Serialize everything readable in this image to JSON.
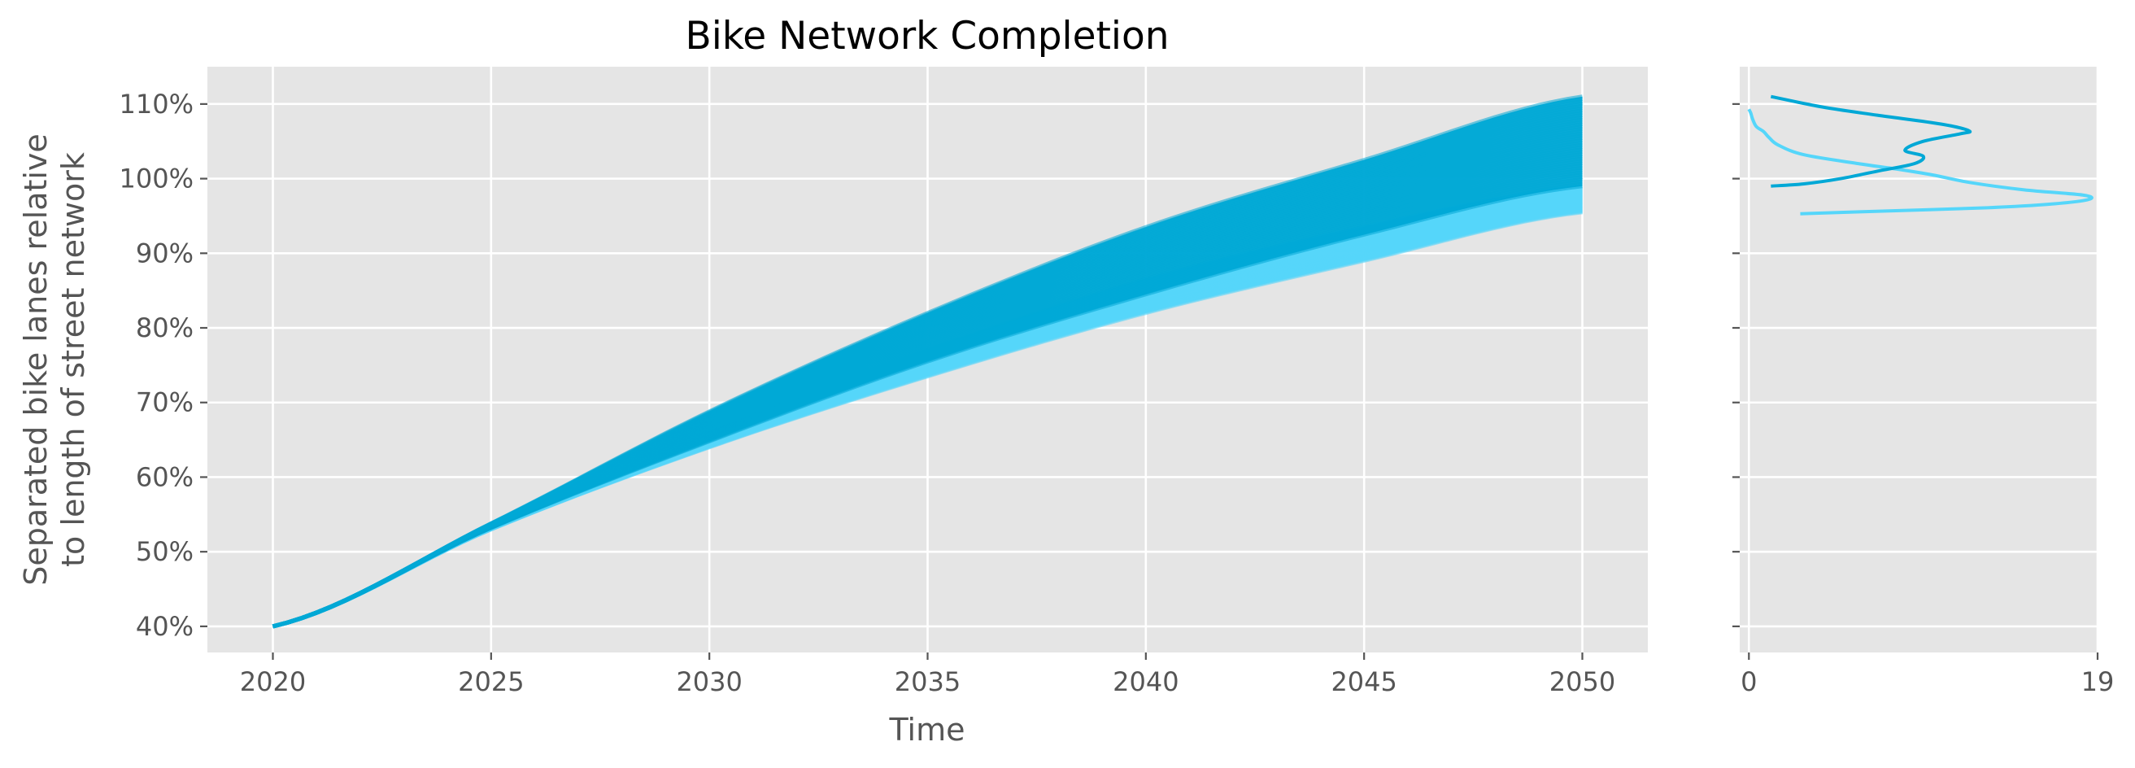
{
  "chart_data": [
    {
      "type": "line",
      "title": "Bike Network Completion",
      "xlabel": "Time",
      "ylabel_lines": [
        "Separated bike lanes relative",
        "to length of street network"
      ],
      "x_ticks": [
        2020,
        2025,
        2030,
        2035,
        2040,
        2045,
        2050
      ],
      "y_ticks": [
        40,
        50,
        60,
        70,
        80,
        90,
        100,
        110
      ],
      "y_tick_labels": [
        "40%",
        "50%",
        "60%",
        "70%",
        "80%",
        "90%",
        "100%",
        "110%"
      ],
      "xlim": [
        2018.5,
        2051.5
      ],
      "ylim": [
        36.5,
        115
      ],
      "grid": true,
      "background": "#e5e5e5",
      "description_of_series": "Two ensembles of trajectories from 2020 to 2050",
      "series": [
        {
          "color": "#00a8d6",
          "x": [
            2020,
            2025,
            2030,
            2035,
            2040,
            2045,
            2050
          ],
          "lower": [
            40,
            53.2,
            64.8,
            75.5,
            84.5,
            92.5,
            99.0
          ],
          "upper": [
            40,
            53.8,
            68.8,
            82.0,
            93.5,
            102.5,
            111.0
          ]
        },
        {
          "color": "#55d6fa",
          "x": [
            2020,
            2025,
            2030,
            2035,
            2040,
            2045,
            2050
          ],
          "lower": [
            40,
            53.0,
            64.0,
            73.5,
            82.0,
            89.0,
            95.5
          ],
          "upper": [
            40,
            53.5,
            66.0,
            77.0,
            86.5,
            93.5,
            99.0
          ]
        }
      ]
    },
    {
      "type": "line",
      "orientation": "horizontal density",
      "x_ticks": [
        0,
        19
      ],
      "x_tick_labels": [
        "0",
        "19"
      ],
      "xlim": [
        -0.5,
        19
      ],
      "ylim": [
        36.5,
        115
      ],
      "y_ticks": [
        40,
        50,
        60,
        70,
        80,
        90,
        100,
        110
      ],
      "grid": true,
      "series": [
        {
          "color": "#00a8d6",
          "points": [
            [
              1.2,
              99.0
            ],
            [
              3.0,
              99.3
            ],
            [
              5.0,
              100.0
            ],
            [
              7.0,
              101.0
            ],
            [
              9.0,
              102.0
            ],
            [
              9.5,
              103.0
            ],
            [
              8.5,
              103.8
            ],
            [
              9.5,
              105.0
            ],
            [
              11.5,
              106.0
            ],
            [
              12.0,
              106.4
            ],
            [
              10.5,
              107.3
            ],
            [
              7.0,
              108.5
            ],
            [
              4.0,
              109.6
            ],
            [
              1.2,
              111.0
            ]
          ]
        },
        {
          "color": "#55d6fa",
          "points": [
            [
              2.8,
              95.3
            ],
            [
              8.0,
              95.7
            ],
            [
              13.0,
              96.1
            ],
            [
              16.5,
              96.6
            ],
            [
              18.5,
              97.2
            ],
            [
              18.2,
              97.8
            ],
            [
              15.0,
              98.5
            ],
            [
              12.0,
              99.5
            ],
            [
              10.0,
              100.5
            ],
            [
              8.0,
              101.3
            ],
            [
              6.0,
              102.0
            ],
            [
              3.0,
              103.2
            ],
            [
              1.6,
              104.5
            ],
            [
              1.1,
              105.5
            ],
            [
              0.8,
              106.3
            ],
            [
              0.4,
              107.0
            ],
            [
              0.2,
              108.0
            ],
            [
              0.1,
              108.8
            ],
            [
              0.0,
              109.3
            ]
          ]
        }
      ]
    }
  ]
}
